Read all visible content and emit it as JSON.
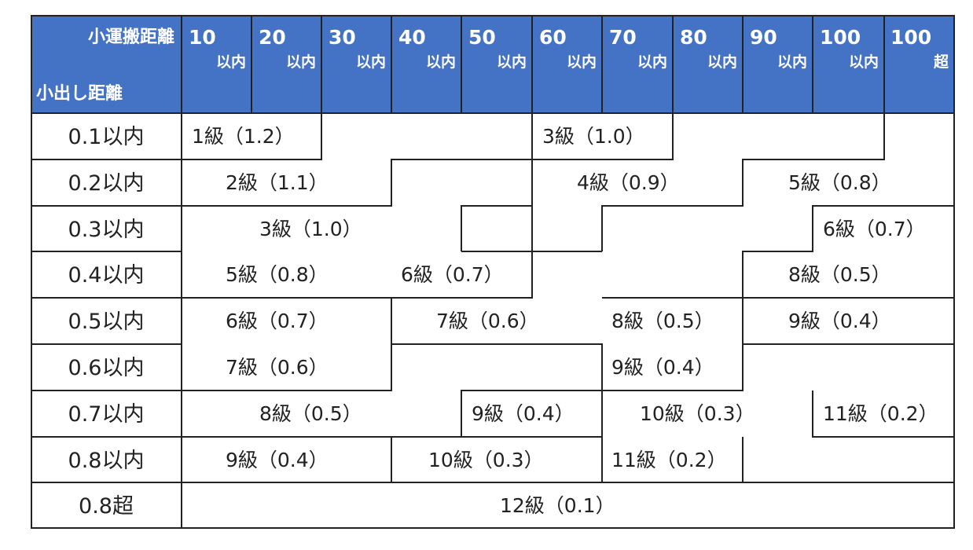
{
  "header": {
    "corner_top": "小運搬距離",
    "corner_bottom": "小出し距離",
    "columns": [
      {
        "num": "10",
        "sub": "以内"
      },
      {
        "num": "20",
        "sub": "以内"
      },
      {
        "num": "30",
        "sub": "以内"
      },
      {
        "num": "40",
        "sub": "以内"
      },
      {
        "num": "50",
        "sub": "以内"
      },
      {
        "num": "60",
        "sub": "以内"
      },
      {
        "num": "70",
        "sub": "以内"
      },
      {
        "num": "80",
        "sub": "以内"
      },
      {
        "num": "90",
        "sub": "以内"
      },
      {
        "num": "100",
        "sub": "以内"
      },
      {
        "num": "100",
        "sub": "超"
      }
    ]
  },
  "rows": [
    "0.1以内",
    "0.2以内",
    "0.3以内",
    "0.4以内",
    "0.5以内",
    "0.6以内",
    "0.7以内",
    "0.8以内",
    "0.8超"
  ],
  "cells": [
    "1級（1.2）",
    "3級（1.0）",
    "2級（1.1）",
    "4級（0.9）",
    "5級（0.8）",
    "3級（1.0）",
    "6級（0.7）",
    "5級（0.8）",
    "6級（0.7）",
    "8級（0.5）",
    "6級（0.7）",
    "7級（0.6）",
    "8級（0.5）",
    "9級（0.4）",
    "7級（0.6）",
    "9級（0.4）",
    "8級（0.5）",
    "9級（0.4）",
    "10級（0.3）",
    "11級（0.2）",
    "9級（0.4）",
    "10級（0.3）",
    "11級（0.2）",
    "12級（0.1）"
  ],
  "colors": {
    "header_bg": "#4472C4",
    "header_text": "#ffffff",
    "grid": "#222222"
  }
}
